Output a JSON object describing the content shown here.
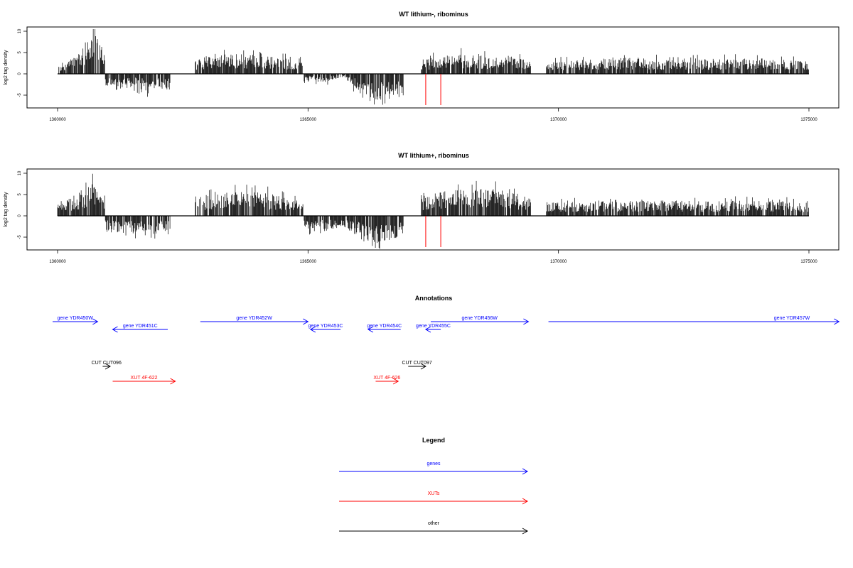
{
  "chart_data": [
    {
      "type": "bar",
      "title": "WT lithium-, ribominus",
      "ylabel": "log2 tag density",
      "xlabel": "",
      "xlim": [
        1360000,
        1375000
      ],
      "ylim": [
        -8,
        11
      ],
      "xticks": [
        "1360000",
        "1365000",
        "1370000",
        "1375000"
      ],
      "yticks": [
        "10",
        "5",
        "0",
        "-5"
      ],
      "red_markers_x": [
        1367350,
        1367650
      ],
      "series": [
        {
          "values": [
            [
              1360000,
              1.6
            ],
            [
              1360400,
              3.5
            ],
            [
              1360600,
              6.8
            ],
            [
              1360700,
              8.7
            ],
            [
              1360800,
              7.8
            ],
            [
              1360900,
              4.2
            ],
            [
              1361000,
              -2.6
            ],
            [
              1361200,
              -3.1
            ],
            [
              1361500,
              -2.4
            ],
            [
              1361800,
              -3.2
            ],
            [
              1362000,
              -2.8
            ],
            [
              1362200,
              -2.6
            ],
            [
              1362800,
              2.7
            ],
            [
              1363200,
              3.9
            ],
            [
              1363600,
              3.6
            ],
            [
              1364000,
              3.4
            ],
            [
              1364400,
              3.1
            ],
            [
              1364700,
              2.6
            ],
            [
              1365100,
              -1.4
            ],
            [
              1365400,
              -1.5
            ],
            [
              1365700,
              -0.6
            ],
            [
              1366100,
              -4.5
            ],
            [
              1366300,
              -5.8
            ],
            [
              1366500,
              -5.6
            ],
            [
              1366700,
              -4.2
            ],
            [
              1367300,
              2.6
            ],
            [
              1367800,
              3.4
            ],
            [
              1368200,
              3.7
            ],
            [
              1368600,
              3.1
            ],
            [
              1369000,
              3.3
            ],
            [
              1369400,
              2.5
            ],
            [
              1369800,
              2.4
            ],
            [
              1370600,
              2.6
            ],
            [
              1371400,
              3.0
            ],
            [
              1372200,
              2.6
            ],
            [
              1373000,
              2.7
            ],
            [
              1373800,
              3.0
            ],
            [
              1374600,
              2.6
            ],
            [
              1375000,
              2.3
            ]
          ]
        }
      ]
    },
    {
      "type": "bar",
      "title": "WT lithium+, ribominus",
      "ylabel": "log2 tag density",
      "xlabel": "",
      "xlim": [
        1360000,
        1375000
      ],
      "ylim": [
        -8,
        11
      ],
      "xticks": [
        "1360000",
        "1365000",
        "1370000",
        "1375000"
      ],
      "yticks": [
        "10",
        "5",
        "0",
        "-5"
      ],
      "red_markers_x": [
        1367350,
        1367650
      ],
      "series": [
        {
          "values": [
            [
              1360000,
              2.4
            ],
            [
              1360400,
              4.0
            ],
            [
              1360600,
              5.8
            ],
            [
              1360700,
              6.9
            ],
            [
              1360800,
              5.2
            ],
            [
              1360900,
              3.0
            ],
            [
              1361000,
              -3.0
            ],
            [
              1361200,
              -3.4
            ],
            [
              1361500,
              -3.2
            ],
            [
              1361800,
              -3.6
            ],
            [
              1362000,
              -3.4
            ],
            [
              1362200,
              -2.6
            ],
            [
              1362800,
              3.6
            ],
            [
              1363200,
              4.2
            ],
            [
              1363600,
              4.3
            ],
            [
              1364000,
              4.4
            ],
            [
              1364400,
              3.7
            ],
            [
              1364700,
              2.8
            ],
            [
              1365100,
              -2.6
            ],
            [
              1365400,
              -2.9
            ],
            [
              1365700,
              -1.8
            ],
            [
              1366100,
              -4.6
            ],
            [
              1366300,
              -5.5
            ],
            [
              1366500,
              -4.9
            ],
            [
              1366700,
              -4.0
            ],
            [
              1367300,
              3.8
            ],
            [
              1367800,
              4.6
            ],
            [
              1368200,
              5.0
            ],
            [
              1368600,
              4.9
            ],
            [
              1369000,
              4.6
            ],
            [
              1369400,
              3.4
            ],
            [
              1369800,
              2.4
            ],
            [
              1370600,
              2.6
            ],
            [
              1371400,
              2.7
            ],
            [
              1372200,
              2.8
            ],
            [
              1373000,
              2.6
            ],
            [
              1373800,
              2.8
            ],
            [
              1374600,
              2.6
            ],
            [
              1375000,
              2.4
            ]
          ]
        }
      ]
    }
  ],
  "annotations": {
    "title": "Annotations",
    "features": [
      {
        "label": "gene YDR450W",
        "kind": "gene",
        "start": 1359900,
        "end": 1360800,
        "strand": "+",
        "row": 0
      },
      {
        "label": "gene YDR451C",
        "kind": "gene",
        "start": 1361100,
        "end": 1362200,
        "strand": "-",
        "row": 1
      },
      {
        "label": "gene YDR452W",
        "kind": "gene",
        "start": 1362850,
        "end": 1365000,
        "strand": "+",
        "row": 0
      },
      {
        "label": "gene YDR453C",
        "kind": "gene",
        "start": 1365050,
        "end": 1365650,
        "strand": "-",
        "row": 1
      },
      {
        "label": "gene YDR454C",
        "kind": "gene",
        "start": 1366200,
        "end": 1366850,
        "strand": "-",
        "row": 1
      },
      {
        "label": "gene YDR455C",
        "kind": "gene",
        "start": 1367350,
        "end": 1367650,
        "strand": "-",
        "row": 1
      },
      {
        "label": "gene YDR456W",
        "kind": "gene",
        "start": 1367450,
        "end": 1369400,
        "strand": "+",
        "row": 0
      },
      {
        "label": "gene YDR457W",
        "kind": "gene",
        "start": 1369800,
        "end": 1375600,
        "strand": "+",
        "row": 0
      },
      {
        "label": "CUT CUT096",
        "kind": "other",
        "start": 1360900,
        "end": 1361050,
        "strand": "+",
        "row": 2
      },
      {
        "label": "XUT 4F-622",
        "kind": "xut",
        "start": 1361100,
        "end": 1362350,
        "strand": "+",
        "row": 3
      },
      {
        "label": "CUT CUT097",
        "kind": "other",
        "start": 1367000,
        "end": 1367350,
        "strand": "+",
        "row": 2
      },
      {
        "label": "XUT 4F-626",
        "kind": "xut",
        "start": 1366350,
        "end": 1366800,
        "strand": "+",
        "row": 3
      }
    ]
  },
  "legend": {
    "title": "Legend",
    "items": [
      {
        "label": "genes",
        "color": "#0000ff"
      },
      {
        "label": "XUTs",
        "color": "#ff0000"
      },
      {
        "label": "other",
        "color": "#000000"
      }
    ]
  },
  "colors": {
    "bars": "#000000",
    "marker": "#ff0000",
    "gene": "#0000ff",
    "xut": "#ff0000",
    "other": "#000000"
  }
}
